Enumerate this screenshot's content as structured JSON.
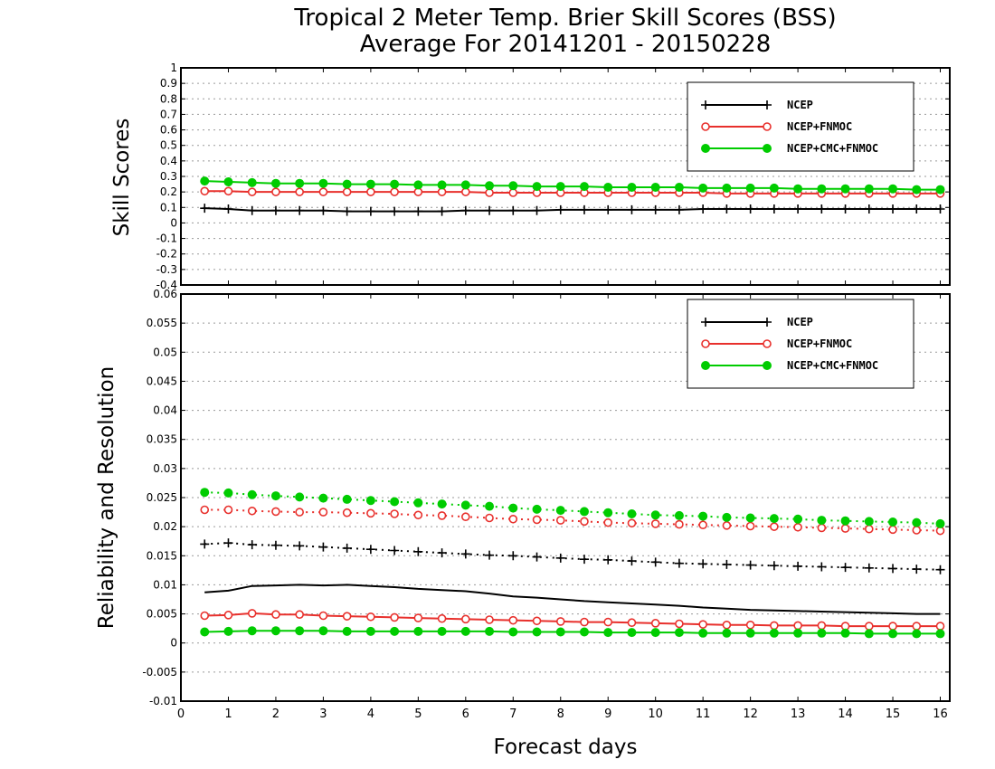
{
  "title_line1": "Tropical 2 Meter Temp. Brier Skill Scores (BSS)",
  "title_line2": "Average For 20141201 - 20150228",
  "xlabel": "Forecast days",
  "colors": {
    "NCEP": "#000000",
    "NCEP+FNMOC": "#e8302c",
    "NCEP+CMC+FNMOC": "#00cc00"
  },
  "chart_data": [
    {
      "type": "line",
      "ylabel": "Skill Scores",
      "xlim": [
        0,
        16.2
      ],
      "ylim": [
        -0.4,
        1
      ],
      "grid": true,
      "legend_position": "top-right",
      "x_ticks": [
        "0",
        "1",
        "2",
        "3",
        "4",
        "5",
        "6",
        "7",
        "8",
        "9",
        "10",
        "11",
        "12",
        "13",
        "14",
        "15",
        "16"
      ],
      "y_ticks": [
        "-0.4",
        "-0.3",
        "-0.2",
        "-0.1",
        "0",
        "0.1",
        "0.2",
        "0.3",
        "0.4",
        "0.5",
        "0.6",
        "0.7",
        "0.8",
        "0.9",
        "1"
      ],
      "x": [
        0.5,
        1,
        1.5,
        2,
        2.5,
        3,
        3.5,
        4,
        4.5,
        5,
        5.5,
        6,
        6.5,
        7,
        7.5,
        8,
        8.5,
        9,
        9.5,
        10,
        10.5,
        11,
        11.5,
        12,
        12.5,
        13,
        13.5,
        14,
        14.5,
        15,
        15.5,
        16
      ],
      "series": [
        {
          "name": "NCEP",
          "marker": "plus",
          "style": "solid",
          "values": [
            0.095,
            0.09,
            0.08,
            0.08,
            0.08,
            0.08,
            0.075,
            0.075,
            0.075,
            0.075,
            0.075,
            0.08,
            0.08,
            0.08,
            0.08,
            0.085,
            0.085,
            0.085,
            0.085,
            0.085,
            0.085,
            0.09,
            0.09,
            0.09,
            0.09,
            0.09,
            0.09,
            0.09,
            0.09,
            0.09,
            0.09,
            0.09
          ]
        },
        {
          "name": "NCEP+FNMOC",
          "marker": "open-circle",
          "style": "solid",
          "values": [
            0.205,
            0.205,
            0.2,
            0.2,
            0.2,
            0.2,
            0.2,
            0.2,
            0.2,
            0.2,
            0.2,
            0.2,
            0.195,
            0.195,
            0.195,
            0.195,
            0.195,
            0.195,
            0.195,
            0.195,
            0.195,
            0.195,
            0.19,
            0.19,
            0.19,
            0.19,
            0.19,
            0.19,
            0.19,
            0.19,
            0.19,
            0.19
          ]
        },
        {
          "name": "NCEP+CMC+FNMOC",
          "marker": "filled-circle",
          "style": "solid",
          "values": [
            0.27,
            0.265,
            0.26,
            0.255,
            0.255,
            0.255,
            0.25,
            0.25,
            0.25,
            0.245,
            0.245,
            0.245,
            0.24,
            0.24,
            0.235,
            0.235,
            0.235,
            0.23,
            0.23,
            0.23,
            0.23,
            0.225,
            0.225,
            0.225,
            0.225,
            0.22,
            0.22,
            0.22,
            0.22,
            0.22,
            0.215,
            0.215
          ]
        }
      ]
    },
    {
      "type": "line",
      "ylabel": "Reliability and Resolution",
      "xlim": [
        0,
        16.2
      ],
      "ylim": [
        -0.01,
        0.06
      ],
      "grid": true,
      "legend_position": "top-right",
      "x_ticks": [
        "0",
        "1",
        "2",
        "3",
        "4",
        "5",
        "6",
        "7",
        "8",
        "9",
        "10",
        "11",
        "12",
        "13",
        "14",
        "15",
        "16"
      ],
      "y_ticks": [
        "-0.01",
        "-0.005",
        "0",
        "0.005",
        "0.01",
        "0.015",
        "0.02",
        "0.025",
        "0.03",
        "0.035",
        "0.04",
        "0.045",
        "0.05",
        "0.055",
        "0.06"
      ],
      "x": [
        0.5,
        1,
        1.5,
        2,
        2.5,
        3,
        3.5,
        4,
        4.5,
        5,
        5.5,
        6,
        6.5,
        7,
        7.5,
        8,
        8.5,
        9,
        9.5,
        10,
        10.5,
        11,
        11.5,
        12,
        12.5,
        13,
        13.5,
        14,
        14.5,
        15,
        15.5,
        16
      ],
      "series": [
        {
          "name": "NCEP",
          "marker": "plus",
          "style": "dotted",
          "values": [
            0.017,
            0.0172,
            0.0169,
            0.0168,
            0.0167,
            0.0165,
            0.0163,
            0.0161,
            0.0159,
            0.0157,
            0.0155,
            0.0153,
            0.0151,
            0.015,
            0.0148,
            0.0146,
            0.0144,
            0.0143,
            0.0141,
            0.0139,
            0.0137,
            0.0136,
            0.0135,
            0.0134,
            0.0133,
            0.0132,
            0.0131,
            0.013,
            0.0129,
            0.0128,
            0.0127,
            0.0126
          ]
        },
        {
          "name": "NCEP+FNMOC",
          "marker": "open-circle",
          "style": "dotted",
          "values": [
            0.0229,
            0.0229,
            0.0227,
            0.0226,
            0.0225,
            0.0225,
            0.0224,
            0.0223,
            0.0222,
            0.022,
            0.0219,
            0.0217,
            0.0215,
            0.0213,
            0.0212,
            0.0211,
            0.0209,
            0.0207,
            0.0206,
            0.0205,
            0.0204,
            0.0203,
            0.0202,
            0.0201,
            0.02,
            0.0199,
            0.0198,
            0.0197,
            0.0196,
            0.0195,
            0.0194,
            0.0193
          ]
        },
        {
          "name": "NCEP+CMC+FNMOC",
          "marker": "filled-circle",
          "style": "dotted",
          "values": [
            0.0259,
            0.0258,
            0.0255,
            0.0253,
            0.0251,
            0.0249,
            0.0247,
            0.0245,
            0.0243,
            0.0241,
            0.0239,
            0.0237,
            0.0235,
            0.0232,
            0.023,
            0.0228,
            0.0226,
            0.0224,
            0.0222,
            0.022,
            0.0219,
            0.0218,
            0.0216,
            0.0215,
            0.0214,
            0.0213,
            0.0211,
            0.021,
            0.0209,
            0.0208,
            0.0207,
            0.0205
          ]
        },
        {
          "name": "NCEP",
          "marker": "none",
          "style": "solid",
          "values": [
            0.0087,
            0.009,
            0.0098,
            0.0099,
            0.01,
            0.0099,
            0.01,
            0.0098,
            0.0096,
            0.0093,
            0.0091,
            0.0089,
            0.0085,
            0.008,
            0.0078,
            0.0075,
            0.0072,
            0.007,
            0.0068,
            0.0066,
            0.0064,
            0.0061,
            0.0059,
            0.0057,
            0.0056,
            0.0055,
            0.0054,
            0.0053,
            0.0052,
            0.0051,
            0.005,
            0.005
          ]
        },
        {
          "name": "NCEP+FNMOC",
          "marker": "open-circle",
          "style": "solid",
          "values": [
            0.0047,
            0.0048,
            0.0051,
            0.0049,
            0.0049,
            0.0047,
            0.0046,
            0.0045,
            0.0044,
            0.0043,
            0.0042,
            0.0041,
            0.004,
            0.0039,
            0.0038,
            0.0037,
            0.0036,
            0.0036,
            0.0035,
            0.0034,
            0.0033,
            0.0032,
            0.0031,
            0.0031,
            0.003,
            0.003,
            0.003,
            0.0029,
            0.0029,
            0.0029,
            0.0029,
            0.0029
          ]
        },
        {
          "name": "NCEP+CMC+FNMOC",
          "marker": "filled-circle",
          "style": "solid",
          "values": [
            0.0019,
            0.002,
            0.0021,
            0.0021,
            0.0021,
            0.0021,
            0.002,
            0.002,
            0.002,
            0.002,
            0.002,
            0.002,
            0.002,
            0.0019,
            0.0019,
            0.0019,
            0.0019,
            0.0018,
            0.0018,
            0.0018,
            0.0018,
            0.0017,
            0.0017,
            0.0017,
            0.0017,
            0.0017,
            0.0017,
            0.0017,
            0.0016,
            0.0016,
            0.0016,
            0.0016
          ]
        }
      ]
    }
  ]
}
